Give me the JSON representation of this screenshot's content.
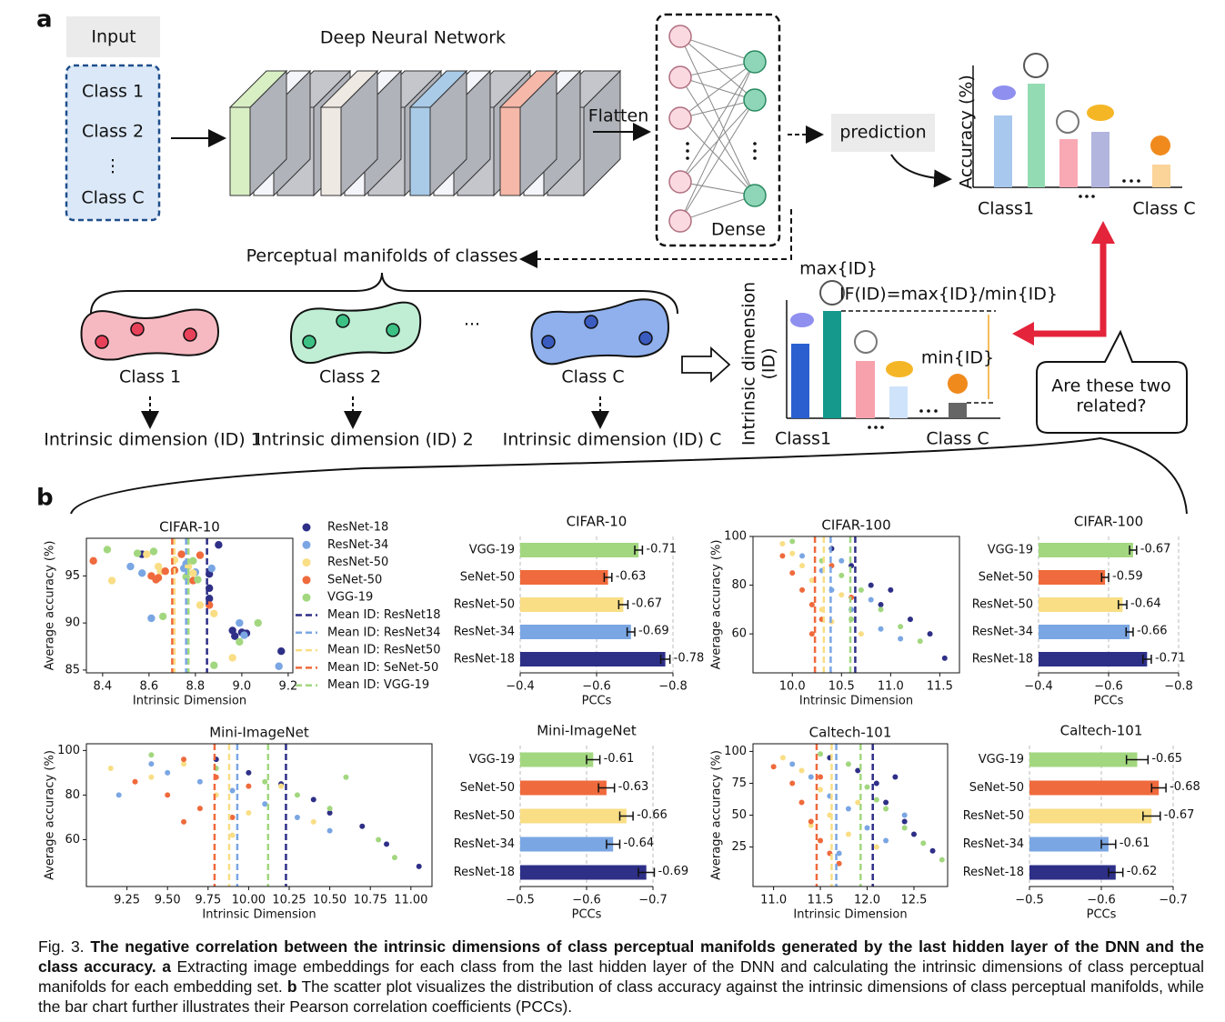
{
  "panel_a": {
    "label": "a",
    "input": "Input",
    "classes": [
      "Class 1",
      "Class 2",
      "⋮",
      "Class C"
    ],
    "network": "Deep Neural Network",
    "flatten": "Flatten",
    "dense": "Dense",
    "prediction": "prediction",
    "accuracy_axis": "Accuracy (%)",
    "accuracy_classes": [
      "Class1",
      "Class C"
    ],
    "manifolds_title": "Perceptual manifolds of classes",
    "manifolds": [
      "Class 1",
      "Class 2",
      "Class C"
    ],
    "ellipsis": "...",
    "id_labels": [
      "Intrinsic dimension (ID) 1",
      "Intrinsic dimension (ID) 2",
      "Intrinsic dimension (ID) C"
    ],
    "id_axis": [
      "Intrinsic dimension",
      "(ID)"
    ],
    "max": "max{ID}",
    "if": "IF(ID)=max{ID}/min{ID}",
    "min": "min{ID}",
    "id_classes": [
      "Class1",
      "Class C"
    ],
    "question": [
      "Are these two",
      "related?"
    ]
  },
  "panel_b": {
    "label": "b"
  },
  "chart_data": [
    {
      "type": "scatter",
      "title": "CIFAR-10",
      "xlabel": "Intrinsic Dimension",
      "ylabel": "Average accuracy (%)",
      "xlim": [
        8.33,
        9.22
      ],
      "xticks": [
        8.4,
        8.6,
        8.8,
        {
          "value": 9,
          "label": "9.0"
        },
        9.2
      ],
      "ylim": [
        84.7,
        99
      ],
      "yticks": [
        85,
        90,
        95
      ],
      "series": [
        {
          "name": "ResNet-18",
          "color": "#2e2f87",
          "x": [
            8.57,
            8.9,
            8.86,
            8.86,
            8.86,
            8.97,
            9.0,
            9.02,
            9.17,
            8.96
          ],
          "values": [
            97.3,
            98.3,
            95.2,
            93.7,
            92.6,
            88.6,
            89.0,
            88.9,
            87.0,
            89.2
          ]
        },
        {
          "name": "ResNet-34",
          "color": "#7aa6e3",
          "x": [
            8.52,
            8.57,
            8.61,
            8.75,
            8.76,
            8.8,
            8.87,
            8.99,
            9.01,
            9.16
          ],
          "values": [
            96.0,
            95.3,
            90.5,
            95.8,
            96.3,
            95.4,
            95.8,
            90.0,
            88.7,
            85.4
          ]
        },
        {
          "name": "ResNet-50",
          "color": "#f9de85",
          "x": [
            8.44,
            8.59,
            8.64,
            8.71,
            8.77,
            8.79,
            8.82,
            8.88,
            8.96,
            8.65
          ],
          "values": [
            94.5,
            97.3,
            96.0,
            96.7,
            96.0,
            95.3,
            91.9,
            91.0,
            86.3,
            95.5
          ]
        },
        {
          "name": "SeNet-50",
          "color": "#ef6a3c",
          "x": [
            8.36,
            8.61,
            8.64,
            8.67,
            8.71,
            8.74,
            8.79,
            8.82,
            8.86,
            8.63
          ],
          "values": [
            96.6,
            95.0,
            94.8,
            95.5,
            95.6,
            97.3,
            94.5,
            97.2,
            91.9,
            94.6
          ]
        },
        {
          "name": "VGG-19",
          "color": "#a2d77f",
          "x": [
            8.42,
            8.55,
            8.62,
            8.66,
            8.76,
            8.79,
            8.81,
            8.88,
            8.99,
            9.07
          ],
          "values": [
            97.8,
            97.4,
            97.6,
            90.7,
            94.9,
            96.6,
            94.6,
            85.5,
            88.0,
            90.0
          ]
        }
      ],
      "mean_ids": [
        8.85,
        8.76,
        8.71,
        8.7,
        8.77
      ],
      "mean_labels": [
        "Mean ID: ResNet18",
        "Mean ID: ResNet34",
        "Mean ID: ResNet50",
        "Mean ID: SeNet-50",
        "Mean ID: VGG-19"
      ]
    },
    {
      "type": "barh",
      "title": "CIFAR-10",
      "xlabel": "PCCs",
      "xlim": [
        -0.4,
        -0.8
      ],
      "xticks": [
        {
          "value": -0.4,
          "label": "−0.4"
        },
        {
          "value": -0.6,
          "label": "−0.6"
        },
        {
          "value": -0.8,
          "label": "−0.8"
        }
      ],
      "categories": [
        "VGG-19",
        "SeNet-50",
        "ResNet-50",
        "ResNet-34",
        "ResNet-18"
      ],
      "values": [
        -0.71,
        -0.63,
        -0.67,
        -0.69,
        -0.78
      ],
      "errors": [
        0.01,
        0.01,
        0.012,
        0.01,
        0.012
      ],
      "colors": [
        "#a2d77f",
        "#ef6a3c",
        "#f9de85",
        "#7aa6e3",
        "#2e2f87"
      ]
    },
    {
      "type": "scatter",
      "title": "CIFAR-100",
      "xlabel": "Intrinsic Dimension",
      "ylabel": "Average accuracy (%)",
      "xlim": [
        9.6,
        11.7
      ],
      "xticks": [
        {
          "value": 10,
          "label": "10.0"
        },
        10.5,
        {
          "value": 11,
          "label": "11.0"
        },
        11.5
      ],
      "ylim": [
        44,
        100
      ],
      "yticks": [
        60,
        80,
        100
      ],
      "series": [
        {
          "color": "#2e2f87",
          "x": [
            10.4,
            10.6,
            10.8,
            10.9,
            11.0,
            11.2,
            11.4,
            11.55
          ],
          "values": [
            95,
            88,
            80,
            72,
            78,
            66,
            60,
            50
          ]
        },
        {
          "color": "#7aa6e3",
          "x": [
            10.1,
            10.3,
            10.4,
            10.6,
            10.8,
            10.9,
            11.1,
            10.5
          ],
          "values": [
            92,
            86,
            78,
            70,
            74,
            62,
            58,
            90
          ]
        },
        {
          "color": "#f9de85",
          "x": [
            9.9,
            10.1,
            10.2,
            10.3,
            10.5,
            10.7,
            10.0,
            10.4
          ],
          "values": [
            97,
            88,
            82,
            70,
            76,
            60,
            93,
            65
          ]
        },
        {
          "color": "#ef6a3c",
          "x": [
            9.9,
            10.0,
            10.1,
            10.2,
            10.3,
            10.4,
            10.2,
            10.6
          ],
          "values": [
            92,
            85,
            78,
            72,
            66,
            88,
            60,
            75
          ]
        },
        {
          "color": "#a2d77f",
          "x": [
            10.0,
            10.3,
            10.5,
            10.7,
            10.9,
            11.1,
            11.3,
            10.6
          ],
          "values": [
            98,
            90,
            84,
            78,
            70,
            63,
            57,
            66
          ]
        }
      ],
      "mean_ids": [
        10.64,
        10.39,
        10.32,
        10.23,
        10.59
      ]
    },
    {
      "type": "barh",
      "title": "CIFAR-100",
      "xlabel": "PCCs",
      "xlim": [
        -0.4,
        -0.8
      ],
      "xticks": [
        {
          "value": -0.4,
          "label": "−0.4"
        },
        {
          "value": -0.6,
          "label": "−0.6"
        },
        {
          "value": -0.8,
          "label": "−0.8"
        }
      ],
      "categories": [
        "VGG-19",
        "SeNet-50",
        "ResNet-50",
        "ResNet-34",
        "ResNet-18"
      ],
      "values": [
        -0.67,
        -0.59,
        -0.64,
        -0.66,
        -0.71
      ],
      "errors": [
        0.01,
        0.01,
        0.012,
        0.01,
        0.012
      ],
      "colors": [
        "#a2d77f",
        "#ef6a3c",
        "#f9de85",
        "#7aa6e3",
        "#2e2f87"
      ]
    },
    {
      "type": "scatter",
      "title": "Mini-ImageNet",
      "xlabel": "Intrinsic Dimension",
      "ylabel": "Average accuracy (%)",
      "xlim": [
        9.0,
        11.13
      ],
      "xticks": [
        9.25,
        {
          "value": 9.5,
          "label": "9.50"
        },
        9.75,
        {
          "value": 10,
          "label": "10.00"
        },
        10.25,
        {
          "value": 10.5,
          "label": "10.50"
        },
        10.75,
        {
          "value": 11,
          "label": "11.00"
        }
      ],
      "ylim": [
        39,
        103
      ],
      "yticks": [
        60,
        80,
        100
      ],
      "series": [
        {
          "color": "#2e2f87",
          "x": [
            9.8,
            10.0,
            10.2,
            10.4,
            10.5,
            10.7,
            10.85,
            11.05
          ],
          "values": [
            96,
            90,
            85,
            78,
            72,
            66,
            58,
            48
          ]
        },
        {
          "color": "#7aa6e3",
          "x": [
            9.2,
            9.5,
            9.7,
            9.9,
            10.1,
            10.3,
            10.5,
            9.4
          ],
          "values": [
            80,
            90,
            86,
            82,
            76,
            70,
            64,
            94
          ]
        },
        {
          "color": "#f9de85",
          "x": [
            9.15,
            9.4,
            9.6,
            9.8,
            10.0,
            10.2,
            10.4,
            9.9
          ],
          "values": [
            92,
            88,
            94,
            80,
            72,
            84,
            68,
            62
          ]
        },
        {
          "color": "#ef6a3c",
          "x": [
            9.3,
            9.5,
            9.6,
            9.7,
            9.8,
            9.9,
            10.0,
            9.6
          ],
          "values": [
            86,
            80,
            96,
            74,
            88,
            70,
            84,
            68
          ]
        },
        {
          "color": "#a2d77f",
          "x": [
            9.4,
            9.8,
            10.1,
            10.3,
            10.5,
            10.6,
            10.8,
            10.9
          ],
          "values": [
            98,
            92,
            86,
            80,
            74,
            88,
            60,
            52
          ]
        }
      ],
      "mean_ids": [
        10.23,
        9.93,
        9.88,
        9.79,
        10.12
      ]
    },
    {
      "type": "barh",
      "title": "Mini-ImageNet",
      "xlabel": "PCCs",
      "xlim": [
        -0.5,
        -0.7
      ],
      "xticks": [
        {
          "value": -0.5,
          "label": "−0.5"
        },
        {
          "value": -0.6,
          "label": "−0.6"
        },
        {
          "value": -0.7,
          "label": "−0.7"
        }
      ],
      "categories": [
        "VGG-19",
        "SeNet-50",
        "ResNet-50",
        "ResNet-34",
        "ResNet-18"
      ],
      "values": [
        -0.61,
        -0.63,
        -0.66,
        -0.64,
        -0.69
      ],
      "errors": [
        0.01,
        0.012,
        0.01,
        0.01,
        0.012
      ],
      "colors": [
        "#a2d77f",
        "#ef6a3c",
        "#f9de85",
        "#7aa6e3",
        "#2e2f87"
      ]
    },
    {
      "type": "scatter",
      "title": "Caltech-101",
      "xlabel": "Intrinsic Dimension",
      "ylabel": "Average accuracy (%)",
      "xlim": [
        10.78,
        12.86
      ],
      "xticks": [
        {
          "value": 11,
          "label": "11.0"
        },
        11.5,
        {
          "value": 12,
          "label": "12.0"
        },
        12.5
      ],
      "ylim": [
        -6,
        106
      ],
      "yticks": [
        25,
        50,
        75,
        100
      ],
      "series": [
        {
          "color": "#2e2f87",
          "x": [
            11.6,
            11.9,
            12.1,
            12.2,
            12.4,
            12.5,
            12.7,
            12.3
          ],
          "values": [
            95,
            85,
            75,
            60,
            45,
            35,
            22,
            80
          ]
        },
        {
          "color": "#7aa6e3",
          "x": [
            11.2,
            11.4,
            11.6,
            11.8,
            12.0,
            12.2,
            11.7,
            12.4
          ],
          "values": [
            90,
            80,
            65,
            55,
            40,
            30,
            20,
            50
          ]
        },
        {
          "color": "#f9de85",
          "x": [
            11.1,
            11.3,
            11.5,
            11.6,
            11.8,
            11.9,
            12.1,
            11.4
          ],
          "values": [
            95,
            85,
            70,
            50,
            35,
            60,
            25,
            42
          ]
        },
        {
          "color": "#ef6a3c",
          "x": [
            11.0,
            11.2,
            11.3,
            11.4,
            11.5,
            11.6,
            11.5,
            11.7
          ],
          "values": [
            88,
            75,
            60,
            45,
            30,
            20,
            80,
            12
          ]
        },
        {
          "color": "#a2d77f",
          "x": [
            11.5,
            11.8,
            12.0,
            12.2,
            12.4,
            12.6,
            12.8,
            12.1
          ],
          "values": [
            98,
            90,
            72,
            55,
            40,
            28,
            15,
            62
          ]
        }
      ],
      "mean_ids": [
        12.06,
        11.67,
        11.62,
        11.46,
        11.93
      ]
    },
    {
      "type": "barh",
      "title": "Caltech-101",
      "xlabel": "PCCs",
      "xlim": [
        -0.5,
        -0.7
      ],
      "xticks": [
        {
          "value": -0.5,
          "label": "−0.5"
        },
        {
          "value": -0.6,
          "label": "−0.6"
        },
        {
          "value": -0.7,
          "label": "−0.7"
        }
      ],
      "categories": [
        "VGG-19",
        "SeNet-50",
        "ResNet-50",
        "ResNet-34",
        "ResNet-18"
      ],
      "values": [
        -0.65,
        -0.68,
        -0.67,
        -0.61,
        -0.62
      ],
      "errors": [
        0.015,
        0.01,
        0.012,
        0.01,
        0.01
      ],
      "colors": [
        "#a2d77f",
        "#ef6a3c",
        "#f9de85",
        "#7aa6e3",
        "#2e2f87"
      ]
    }
  ],
  "caption": {
    "figure": "Fig. 3.",
    "title": "The negative correlation between the intrinsic dimensions of class perceptual manifolds generated by the last hidden layer of the DNN and the class accuracy.",
    "a_label": "a",
    "a_text": "Extracting image embeddings for each class from the last hidden layer of the DNN and calculating the intrinsic dimensions of class perceptual manifolds for each embedding set.",
    "b_label": "b",
    "b_text": "The scatter plot visualizes the distribution of class accuracy against the intrinsic dimensions of class perceptual manifolds, while the bar chart further illustrates their Pearson correlation coefficients (PCCs)."
  }
}
